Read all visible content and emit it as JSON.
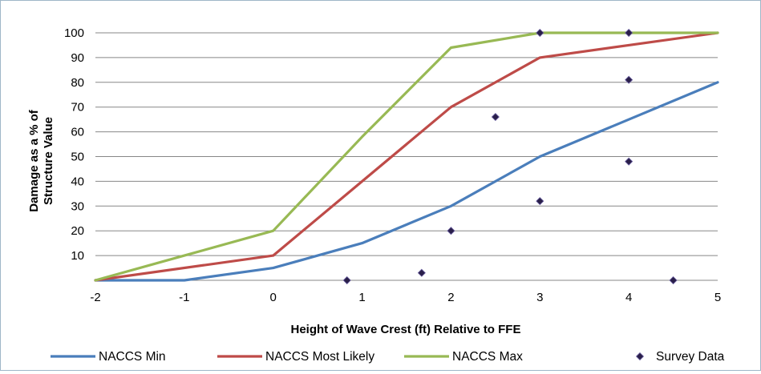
{
  "chart_data": {
    "type": "line",
    "xlabel": "Height of Wave Crest (ft) Relative to FFE",
    "ylabel_lines": [
      "Damage as a % of",
      "Structure Value"
    ],
    "xlim": [
      -2,
      5
    ],
    "ylim": [
      0,
      100
    ],
    "x_ticks": [
      "-2",
      "-1",
      "0",
      "1",
      "2",
      "3",
      "4",
      "5"
    ],
    "y_ticks": [
      "10",
      "20",
      "30",
      "40",
      "50",
      "60",
      "70",
      "80",
      "90",
      "100"
    ],
    "grid": "horizontal",
    "legend_position": "bottom",
    "series": [
      {
        "name": "NACCS Min",
        "kind": "line",
        "color": "#4a7ebb",
        "points": [
          [
            -2,
            0
          ],
          [
            -1,
            0
          ],
          [
            0,
            5
          ],
          [
            1,
            15
          ],
          [
            2,
            30
          ],
          [
            3,
            50
          ],
          [
            4,
            65
          ],
          [
            5,
            80
          ]
        ]
      },
      {
        "name": "NACCS Most Likely",
        "kind": "line",
        "color": "#be4b48",
        "points": [
          [
            -2,
            0
          ],
          [
            0,
            10
          ],
          [
            1,
            40
          ],
          [
            2,
            70
          ],
          [
            3,
            90
          ],
          [
            4,
            95
          ],
          [
            5,
            100
          ]
        ]
      },
      {
        "name": "NACCS Max",
        "kind": "line",
        "color": "#98b954",
        "points": [
          [
            -2,
            0
          ],
          [
            -1,
            10
          ],
          [
            0,
            20
          ],
          [
            1,
            58
          ],
          [
            2,
            94
          ],
          [
            3,
            100
          ],
          [
            4,
            100
          ],
          [
            5,
            100
          ]
        ]
      },
      {
        "name": "Survey Data",
        "kind": "scatter",
        "color": "#2a1f4a",
        "points": [
          [
            0.83,
            0
          ],
          [
            1.67,
            3
          ],
          [
            2.0,
            20
          ],
          [
            2.5,
            66
          ],
          [
            3.0,
            100
          ],
          [
            3.0,
            32
          ],
          [
            4.0,
            100
          ],
          [
            4.0,
            81
          ],
          [
            4.0,
            48
          ],
          [
            4.5,
            0
          ]
        ]
      }
    ]
  }
}
